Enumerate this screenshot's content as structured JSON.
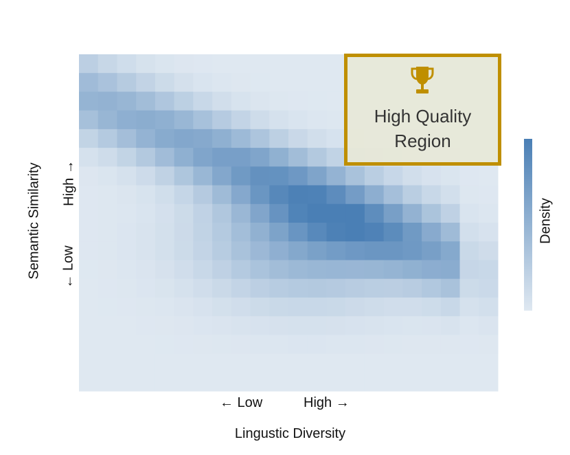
{
  "chart_data": {
    "type": "heatmap",
    "title": "",
    "xlabel": "Lingustic Diversity",
    "ylabel": "Semantic Similarity",
    "x_tick_labels": [
      "← Low",
      "High →"
    ],
    "y_tick_labels": [
      "← Low",
      "High →"
    ],
    "colorbar_label": "Density",
    "grid": false,
    "colors": {
      "low": "#dfe8f1",
      "high": "#4a7fb5",
      "annotation_border": "#bf8f00"
    },
    "annotation": {
      "label": "High Quality\nRegion",
      "icon": "trophy-icon",
      "placement": "top-right"
    },
    "grid_size": [
      22,
      18
    ],
    "density_peak": {
      "x": 12,
      "y": 10
    }
  }
}
